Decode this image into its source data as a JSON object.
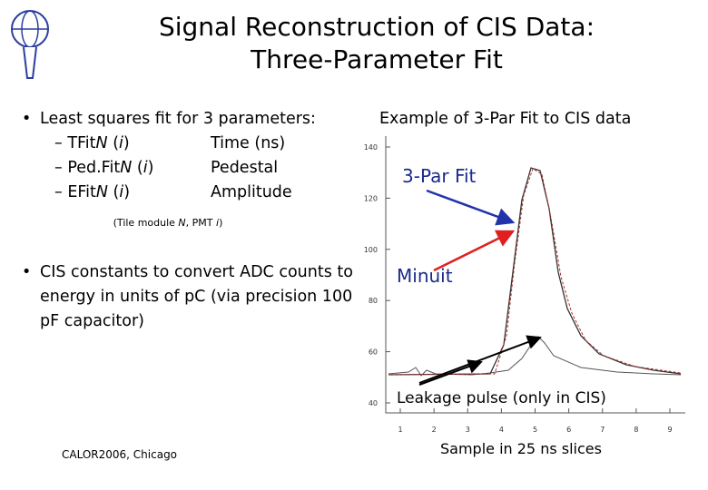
{
  "header": {
    "title_lines": [
      "Signal Reconstruction of CIS Data:",
      "Three-Parameter Fit"
    ]
  },
  "left": {
    "bullet_1": "Least squares fit for 3 parameters:",
    "items": [
      {
        "parts": [
          "– TFit",
          "N",
          " (",
          "i",
          ")"
        ],
        "meaning": "Time (ns)"
      },
      {
        "parts": [
          "– Ped.Fit",
          "N",
          " (",
          "i",
          ")"
        ],
        "meaning": "Pedestal"
      },
      {
        "parts": [
          "– EFit",
          "N",
          " (",
          "i",
          ")"
        ],
        "meaning": "Amplitude"
      }
    ],
    "note_parts": [
      "(Tile module ",
      "N",
      ", PMT ",
      "i",
      ")"
    ],
    "bullet_2": "CIS constants to convert ADC counts to energy in units of pC (via precision 100 pF capacitor)"
  },
  "figure": {
    "caption": "Example of 3-Par Fit to CIS data",
    "yticks": [
      140,
      120,
      100,
      80,
      60,
      40
    ],
    "xticks": [
      1,
      2,
      3,
      4,
      5,
      6,
      7,
      8,
      9
    ],
    "labels": {
      "fit": "3-Par Fit",
      "minuit": "Minuit",
      "leakage": "Leakage pulse (only in CIS)",
      "xlabel": "Sample in 25 ns slices"
    }
  },
  "footer": {
    "conference": "CALOR2006, Chicago"
  }
}
